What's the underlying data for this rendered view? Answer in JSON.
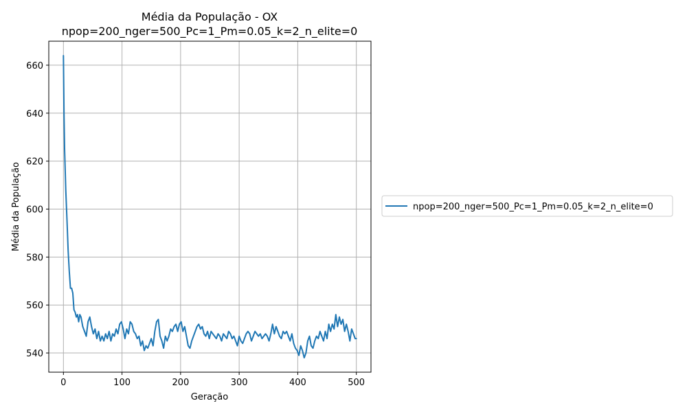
{
  "chart_data": {
    "type": "line",
    "title": "Média da População - OX",
    "subtitle": "npop=200_nger=500_Pc=1_Pm=0.05_k=2_n_elite=0",
    "xlabel": "Geração",
    "ylabel": "Média da População",
    "xlim": [
      -25,
      525
    ],
    "ylim": [
      532,
      670
    ],
    "xticks": [
      0,
      100,
      200,
      300,
      400,
      500
    ],
    "yticks": [
      540,
      560,
      580,
      600,
      620,
      640,
      660
    ],
    "grid": true,
    "legend_position": "right",
    "series": [
      {
        "name": "npop=200_nger=500_Pc=1_Pm=0.05_k=2_n_elite=0",
        "color": "#1f77b4",
        "points": [
          [
            0,
            664
          ],
          [
            1,
            640
          ],
          [
            2,
            625
          ],
          [
            4,
            608
          ],
          [
            6,
            596
          ],
          [
            8,
            583
          ],
          [
            10,
            574
          ],
          [
            12,
            567
          ],
          [
            14,
            567
          ],
          [
            16,
            565
          ],
          [
            18,
            558
          ],
          [
            20,
            557
          ],
          [
            22,
            555
          ],
          [
            24,
            556
          ],
          [
            26,
            553
          ],
          [
            28,
            556
          ],
          [
            30,
            555
          ],
          [
            33,
            551
          ],
          [
            36,
            549
          ],
          [
            39,
            547
          ],
          [
            42,
            553
          ],
          [
            45,
            555
          ],
          [
            48,
            551
          ],
          [
            51,
            548
          ],
          [
            54,
            550
          ],
          [
            57,
            546
          ],
          [
            60,
            549
          ],
          [
            63,
            545
          ],
          [
            66,
            547
          ],
          [
            69,
            545
          ],
          [
            72,
            548
          ],
          [
            75,
            546
          ],
          [
            78,
            549
          ],
          [
            81,
            545
          ],
          [
            84,
            548
          ],
          [
            87,
            547
          ],
          [
            90,
            550
          ],
          [
            93,
            548
          ],
          [
            96,
            552
          ],
          [
            99,
            553
          ],
          [
            102,
            550
          ],
          [
            105,
            546
          ],
          [
            108,
            550
          ],
          [
            111,
            548
          ],
          [
            114,
            553
          ],
          [
            117,
            552
          ],
          [
            120,
            549
          ],
          [
            123,
            548
          ],
          [
            126,
            546
          ],
          [
            129,
            547
          ],
          [
            132,
            543
          ],
          [
            135,
            545
          ],
          [
            138,
            541
          ],
          [
            141,
            543
          ],
          [
            144,
            542
          ],
          [
            147,
            544
          ],
          [
            150,
            546
          ],
          [
            153,
            543
          ],
          [
            156,
            549
          ],
          [
            159,
            553
          ],
          [
            162,
            554
          ],
          [
            165,
            547
          ],
          [
            168,
            545
          ],
          [
            171,
            542
          ],
          [
            174,
            547
          ],
          [
            177,
            545
          ],
          [
            180,
            547
          ],
          [
            183,
            550
          ],
          [
            186,
            549
          ],
          [
            189,
            551
          ],
          [
            192,
            552
          ],
          [
            195,
            549
          ],
          [
            198,
            552
          ],
          [
            201,
            553
          ],
          [
            204,
            549
          ],
          [
            207,
            551
          ],
          [
            210,
            547
          ],
          [
            213,
            543
          ],
          [
            216,
            542
          ],
          [
            219,
            545
          ],
          [
            222,
            547
          ],
          [
            225,
            549
          ],
          [
            228,
            551
          ],
          [
            231,
            552
          ],
          [
            234,
            550
          ],
          [
            237,
            551
          ],
          [
            240,
            548
          ],
          [
            243,
            547
          ],
          [
            246,
            549
          ],
          [
            249,
            546
          ],
          [
            252,
            549
          ],
          [
            255,
            548
          ],
          [
            258,
            547
          ],
          [
            261,
            546
          ],
          [
            264,
            548
          ],
          [
            267,
            547
          ],
          [
            270,
            545
          ],
          [
            273,
            548
          ],
          [
            276,
            547
          ],
          [
            279,
            546
          ],
          [
            282,
            549
          ],
          [
            285,
            548
          ],
          [
            288,
            546
          ],
          [
            291,
            547
          ],
          [
            294,
            545
          ],
          [
            297,
            543
          ],
          [
            300,
            547
          ],
          [
            303,
            545
          ],
          [
            306,
            544
          ],
          [
            309,
            546
          ],
          [
            312,
            548
          ],
          [
            315,
            549
          ],
          [
            318,
            548
          ],
          [
            321,
            545
          ],
          [
            324,
            547
          ],
          [
            327,
            549
          ],
          [
            330,
            548
          ],
          [
            333,
            547
          ],
          [
            336,
            548
          ],
          [
            339,
            546
          ],
          [
            342,
            547
          ],
          [
            345,
            548
          ],
          [
            348,
            547
          ],
          [
            351,
            545
          ],
          [
            354,
            548
          ],
          [
            357,
            552
          ],
          [
            360,
            548
          ],
          [
            363,
            551
          ],
          [
            366,
            549
          ],
          [
            369,
            547
          ],
          [
            372,
            546
          ],
          [
            375,
            549
          ],
          [
            378,
            548
          ],
          [
            381,
            549
          ],
          [
            384,
            547
          ],
          [
            387,
            545
          ],
          [
            390,
            548
          ],
          [
            393,
            544
          ],
          [
            396,
            542
          ],
          [
            399,
            541
          ],
          [
            402,
            539
          ],
          [
            405,
            543
          ],
          [
            408,
            541
          ],
          [
            411,
            538
          ],
          [
            414,
            540
          ],
          [
            417,
            545
          ],
          [
            420,
            547
          ],
          [
            423,
            543
          ],
          [
            426,
            542
          ],
          [
            429,
            545
          ],
          [
            432,
            547
          ],
          [
            435,
            546
          ],
          [
            438,
            549
          ],
          [
            441,
            547
          ],
          [
            444,
            545
          ],
          [
            447,
            549
          ],
          [
            450,
            546
          ],
          [
            453,
            552
          ],
          [
            456,
            549
          ],
          [
            459,
            552
          ],
          [
            462,
            550
          ],
          [
            465,
            556
          ],
          [
            468,
            551
          ],
          [
            471,
            555
          ],
          [
            474,
            552
          ],
          [
            477,
            554
          ],
          [
            480,
            549
          ],
          [
            483,
            552
          ],
          [
            486,
            549
          ],
          [
            489,
            545
          ],
          [
            492,
            550
          ],
          [
            495,
            548
          ],
          [
            498,
            546
          ],
          [
            500,
            546
          ]
        ]
      }
    ]
  }
}
